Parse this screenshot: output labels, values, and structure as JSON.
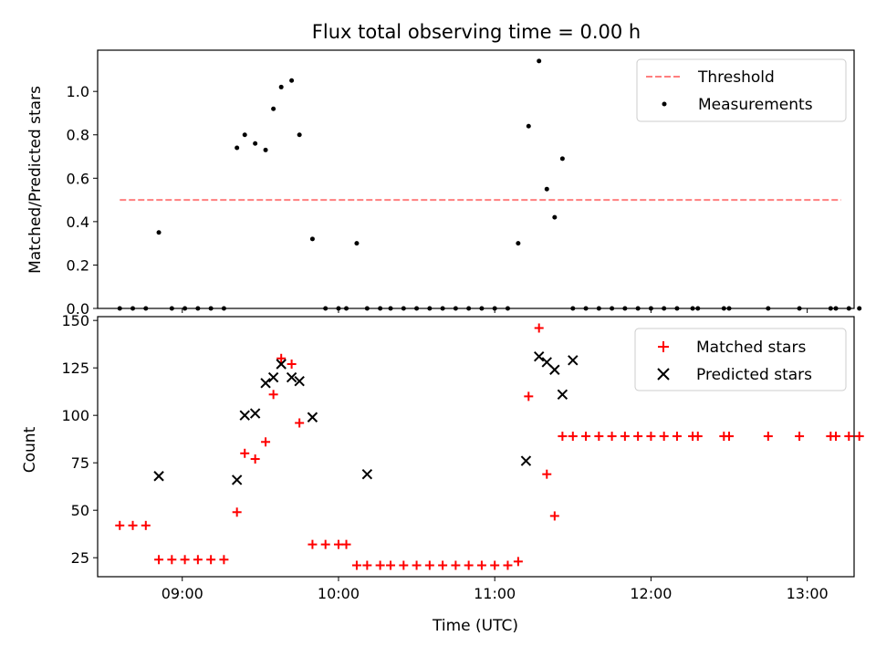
{
  "figure": {
    "title": "Flux total observing time = 0.00 h"
  },
  "chart_data": [
    {
      "type": "scatter",
      "panel": "top",
      "title": "Flux total observing time = 0.00 h",
      "xlabel": "",
      "ylabel": "Matched/Predicted stars",
      "x_ticks": [
        "09:00",
        "10:00",
        "11:00",
        "12:00",
        "13:00"
      ],
      "x_tick_values": [
        540,
        600,
        660,
        720,
        780
      ],
      "x_tick_labels_visible": false,
      "xlim": [
        507.5,
        798
      ],
      "ylim": [
        0,
        1.19
      ],
      "y_ticks": [
        "0.0",
        "0.2",
        "0.4",
        "0.6",
        "0.8",
        "1.0"
      ],
      "y_tick_values": [
        0,
        0.2,
        0.4,
        0.6,
        0.8,
        1.0
      ],
      "grid": false,
      "legend": {
        "position": "upper right",
        "entries": [
          "Threshold",
          "Measurements"
        ]
      },
      "series": [
        {
          "name": "Threshold",
          "style": "dashed-line",
          "color": "#ff7f7f",
          "x": [
            516,
            793
          ],
          "y": [
            0.5,
            0.5
          ]
        },
        {
          "name": "Measurements",
          "style": "dot",
          "color": "#000000",
          "x": [
            516,
            521,
            526,
            531,
            536,
            541,
            546,
            551,
            556,
            561,
            564,
            568,
            572,
            575,
            578,
            582,
            585,
            590,
            595,
            600,
            603,
            607,
            611,
            616,
            620,
            625,
            630,
            635,
            640,
            645,
            650,
            655,
            660,
            665,
            669,
            673,
            677,
            680,
            683,
            686,
            690,
            695,
            700,
            705,
            710,
            715,
            720,
            725,
            730,
            736,
            738,
            748,
            750,
            765,
            777,
            789,
            791,
            796,
            800
          ],
          "y": [
            0,
            0,
            0,
            0.35,
            0,
            0,
            0,
            0,
            0,
            0.74,
            0.8,
            0.76,
            0.73,
            0.92,
            1.02,
            1.05,
            0.8,
            0.32,
            0,
            0,
            0,
            0.3,
            0,
            0,
            0,
            0,
            0,
            0,
            0,
            0,
            0,
            0,
            0,
            0,
            0.3,
            0.84,
            1.14,
            0.55,
            0.42,
            0.69,
            0,
            0,
            0,
            0,
            0,
            0,
            0,
            0,
            0,
            0,
            0,
            0,
            0,
            0,
            0,
            0,
            0,
            0,
            0
          ]
        }
      ]
    },
    {
      "type": "scatter",
      "panel": "bottom",
      "xlabel": "Time (UTC)",
      "ylabel": "Count",
      "x_ticks": [
        "09:00",
        "10:00",
        "11:00",
        "12:00",
        "13:00"
      ],
      "x_tick_values": [
        540,
        600,
        660,
        720,
        780
      ],
      "xlim": [
        507.5,
        798
      ],
      "ylim": [
        15,
        152
      ],
      "y_ticks": [
        "25",
        "50",
        "75",
        "100",
        "125",
        "150"
      ],
      "y_tick_values": [
        25,
        50,
        75,
        100,
        125,
        150
      ],
      "grid": false,
      "legend": {
        "position": "upper right",
        "entries": [
          "Matched stars",
          "Predicted stars"
        ]
      },
      "series": [
        {
          "name": "Matched stars",
          "marker": "+",
          "color": "#ff0000",
          "x": [
            516,
            521,
            526,
            531,
            536,
            541,
            546,
            551,
            556,
            561,
            564,
            568,
            572,
            575,
            578,
            582,
            585,
            590,
            595,
            600,
            603,
            607,
            611,
            616,
            620,
            625,
            630,
            635,
            640,
            645,
            650,
            655,
            660,
            665,
            669,
            673,
            677,
            680,
            683,
            686,
            690,
            695,
            700,
            705,
            710,
            715,
            720,
            725,
            730,
            736,
            738,
            748,
            750,
            765,
            777,
            789,
            791,
            796,
            800
          ],
          "y": [
            42,
            42,
            42,
            24,
            24,
            24,
            24,
            24,
            24,
            49,
            80,
            77,
            86,
            111,
            130,
            127,
            96,
            32,
            32,
            32,
            32,
            21,
            21,
            21,
            21,
            21,
            21,
            21,
            21,
            21,
            21,
            21,
            21,
            21,
            23,
            110,
            146,
            69,
            47,
            89,
            89,
            89,
            89,
            89,
            89,
            89,
            89,
            89,
            89,
            89,
            89,
            89,
            89,
            89,
            89,
            89,
            89,
            89,
            89
          ]
        },
        {
          "name": "Predicted stars",
          "marker": "x",
          "color": "#000000",
          "x": [
            531,
            561,
            564,
            568,
            572,
            575,
            578,
            582,
            585,
            590,
            611,
            672,
            677,
            680,
            683,
            686,
            690
          ],
          "y": [
            68,
            66,
            100,
            101,
            117,
            120,
            127,
            120,
            118,
            99,
            69,
            76,
            131,
            128,
            124,
            111,
            129
          ]
        }
      ]
    }
  ]
}
